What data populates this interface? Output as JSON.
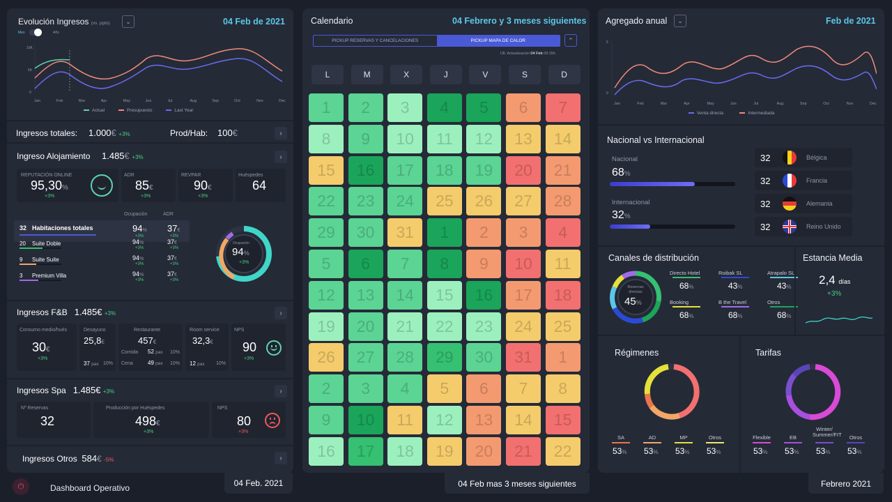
{
  "left": {
    "evo": {
      "title": "Evolución Ingresos",
      "subtitle": "(vs. ppto)",
      "date": "04 Feb de 2021",
      "toggle_left": "Mes",
      "toggle_right": "Año",
      "yticks": [
        "10K",
        "5K",
        "0"
      ],
      "months": [
        "Jan",
        "Feb",
        "Mar",
        "Apr",
        "May",
        "Jun",
        "Jul",
        "Aug",
        "Sep",
        "Oct",
        "Nov",
        "Dec"
      ],
      "legend": [
        "Actual",
        "Presupuesto",
        "Last Year"
      ]
    },
    "totals": {
      "label": "Ingresos totales:",
      "value": "1.000",
      "cur": "€",
      "pct": "+3%",
      "prod_label": "Prod/Hab:",
      "prod_value": "100",
      "prod_cur": "€"
    },
    "aloj": {
      "title": "Ingreso Alojamiento",
      "value": "1.485",
      "cur": "€",
      "pct": "+3%",
      "kpis": [
        {
          "label": "REPUTACIÓN ONLINE",
          "value": "95,30",
          "unit": "%",
          "pct": "+3%"
        },
        {
          "label": "ADR",
          "value": "85",
          "unit": "€",
          "pct": "+3%"
        },
        {
          "label": "REVPAR",
          "value": "90",
          "unit": "€",
          "pct": "+3%"
        },
        {
          "label": "Huéspedes",
          "value": "64"
        }
      ],
      "col_occ": "Ocupación",
      "col_adr": "ADR",
      "rooms": [
        {
          "n": "32",
          "name": "Habitaciones totales",
          "occ": "94",
          "adr": "37",
          "pct": "+3%"
        },
        {
          "n": "20",
          "name": "Suite Doble",
          "occ": "94",
          "adr": "37",
          "pct": "+3%"
        },
        {
          "n": "9",
          "name": "Suite Suite",
          "occ": "94",
          "adr": "37",
          "pct": "+3%"
        },
        {
          "n": "3",
          "name": "Premium Villa",
          "occ": "94",
          "adr": "37",
          "pct": "+3%"
        }
      ],
      "occ_label": "Ocupación",
      "occ_value": "94",
      "occ_unit": "%",
      "occ_pct": "+3%",
      "occ_fraction": 0.94
    },
    "fb": {
      "title": "Ingresos F&B",
      "value": "1.485€",
      "pct": "+3%",
      "consumo_label": "Consumo medio/hués",
      "consumo": "30",
      "consumo_pct": "+3%",
      "desayuno_label": "Desayuno",
      "desayuno": "25,8",
      "desayuno_pax": "37",
      "desayuno_pp": "10%",
      "rest_label": "Restaurante",
      "rest": "457",
      "comida_label": "Comida",
      "comida": "52",
      "comida_pp": "10%",
      "cena_label": "Cena",
      "cena": "49",
      "cena_pp": "10%",
      "room_label": "Room service",
      "room": "32,3",
      "room_pax": "12",
      "room_pp": "10%",
      "nps_label": "NPS",
      "nps": "90",
      "nps_pct": "+3%",
      "pax": "pax",
      "cur": "€"
    },
    "spa": {
      "title": "Ingresos Spa",
      "value": "1.485€",
      "pct": "+3%",
      "res_label": "Nº Reservas",
      "res": "32",
      "prod_label": "Producción por Huéspedes",
      "prod": "498",
      "prod_pct": "+3%",
      "nps_label": "NPS",
      "nps": "80",
      "nps_pct": "+3%"
    },
    "otros": {
      "title": "Ingresos Otros",
      "value": "584",
      "cur": "€",
      "pct": "-5%"
    }
  },
  "footer": {
    "app": "Dashboard Operativo",
    "left_date": "04 Feb. 2021",
    "mid": "04 Feb mas 3 meses siguientes",
    "right": "Febrero 2021"
  },
  "cal": {
    "title": "Calendario",
    "range": "04 Febrero y 3 meses siguientes",
    "tab1": "PICKUP RESERVAS Y CANCELACIONES",
    "tab2": "PICKUP MAPA DE CALOR",
    "update_label": "Últ. Actualización",
    "update_date": "04 Feb",
    "update_time": "09:15h",
    "days": [
      "L",
      "M",
      "X",
      "J",
      "V",
      "S",
      "D"
    ],
    "colors": {
      "a": "#1aa55a",
      "b": "#35c072",
      "c": "#5bd494",
      "d": "#9cf0bd",
      "e": "#f4cc6c",
      "f": "#f49a70",
      "g": "#f2706f"
    },
    "cells": [
      [
        "1",
        "c"
      ],
      [
        "2",
        "c"
      ],
      [
        "3",
        "d"
      ],
      [
        "4",
        "a"
      ],
      [
        "5",
        "a"
      ],
      [
        "6",
        "f"
      ],
      [
        "7",
        "g"
      ],
      [
        "8",
        "d"
      ],
      [
        "9",
        "c"
      ],
      [
        "10",
        "d"
      ],
      [
        "11",
        "d"
      ],
      [
        "12",
        "d"
      ],
      [
        "13",
        "e"
      ],
      [
        "14",
        "e"
      ],
      [
        "15",
        "e"
      ],
      [
        "16",
        "a"
      ],
      [
        "17",
        "c"
      ],
      [
        "18",
        "c"
      ],
      [
        "19",
        "c"
      ],
      [
        "20",
        "g"
      ],
      [
        "21",
        "f"
      ],
      [
        "22",
        "c"
      ],
      [
        "23",
        "c"
      ],
      [
        "24",
        "c"
      ],
      [
        "25",
        "e"
      ],
      [
        "26",
        "e"
      ],
      [
        "27",
        "e"
      ],
      [
        "28",
        "f"
      ],
      [
        "29",
        "c"
      ],
      [
        "30",
        "c"
      ],
      [
        "31",
        "e"
      ],
      [
        "1",
        "a"
      ],
      [
        "2",
        "f"
      ],
      [
        "3",
        "f"
      ],
      [
        "4",
        "g"
      ],
      [
        "5",
        "c"
      ],
      [
        "6",
        "a"
      ],
      [
        "7",
        "c"
      ],
      [
        "8",
        "a"
      ],
      [
        "9",
        "f"
      ],
      [
        "10",
        "g"
      ],
      [
        "11",
        "e"
      ],
      [
        "12",
        "c"
      ],
      [
        "13",
        "c"
      ],
      [
        "14",
        "c"
      ],
      [
        "15",
        "d"
      ],
      [
        "16",
        "a"
      ],
      [
        "17",
        "f"
      ],
      [
        "18",
        "g"
      ],
      [
        "19",
        "d"
      ],
      [
        "20",
        "c"
      ],
      [
        "21",
        "d"
      ],
      [
        "22",
        "d"
      ],
      [
        "23",
        "d"
      ],
      [
        "24",
        "e"
      ],
      [
        "25",
        "e"
      ],
      [
        "26",
        "e"
      ],
      [
        "27",
        "c"
      ],
      [
        "28",
        "c"
      ],
      [
        "29",
        "b"
      ],
      [
        "30",
        "c"
      ],
      [
        "31",
        "g"
      ],
      [
        "1",
        "f"
      ],
      [
        "2",
        "c"
      ],
      [
        "3",
        "c"
      ],
      [
        "4",
        "c"
      ],
      [
        "5",
        "e"
      ],
      [
        "6",
        "f"
      ],
      [
        "7",
        "e"
      ],
      [
        "8",
        "e"
      ],
      [
        "9",
        "c"
      ],
      [
        "10",
        "a"
      ],
      [
        "11",
        "e"
      ],
      [
        "12",
        "d"
      ],
      [
        "13",
        "f"
      ],
      [
        "14",
        "e"
      ],
      [
        "15",
        "g"
      ],
      [
        "16",
        "d"
      ],
      [
        "17",
        "b"
      ],
      [
        "18",
        "d"
      ],
      [
        "19",
        "e"
      ],
      [
        "20",
        "f"
      ],
      [
        "21",
        "g"
      ],
      [
        "22",
        "e"
      ]
    ]
  },
  "right": {
    "agg": {
      "title": "Agregado anual",
      "date": "Feb de 2021",
      "yticks": [
        "5",
        "0"
      ],
      "months": [
        "Jan",
        "Feb",
        "Mar",
        "Apr",
        "May",
        "Jun",
        "Jul",
        "Aug",
        "Sep",
        "Oct",
        "Nov",
        "Dec"
      ],
      "legend": [
        "Venta directa",
        "Intermediada"
      ]
    },
    "nat": {
      "title": "Nacional vs Internacional",
      "nac_label": "Nacional",
      "nac": "68",
      "intl_label": "Internacional",
      "intl": "32",
      "unit": "%",
      "nac_fraction": 0.68,
      "intl_fraction": 0.32,
      "countries": [
        {
          "n": "32",
          "name": "Bélgica"
        },
        {
          "n": "32",
          "name": "Francia"
        },
        {
          "n": "32",
          "name": "Alemania"
        },
        {
          "n": "32",
          "name": "Reino Unido"
        }
      ]
    },
    "canales": {
      "title": "Canales de distribución",
      "center_label": "Reservas directas",
      "center": "45",
      "unit": "%",
      "items": [
        {
          "name": "Directo Hotel",
          "v": "68"
        },
        {
          "name": "Roibak SL",
          "v": "43"
        },
        {
          "name": "Atrapalo SL",
          "v": "43"
        },
        {
          "name": "Booking",
          "v": "68"
        },
        {
          "name": "B the Travel",
          "v": "68"
        },
        {
          "name": "Otros",
          "v": "68"
        }
      ]
    },
    "estancia": {
      "title": "Estancia Media",
      "value": "2,4",
      "unit": "días",
      "pct": "+3%"
    },
    "reg": {
      "title": "Régimenes",
      "items": [
        {
          "name": "SA",
          "v": "53",
          "color": "#e8764a"
        },
        {
          "name": "AD",
          "v": "53",
          "color": "#f2a766"
        },
        {
          "name": "MP",
          "v": "53",
          "color": "#e5e13a"
        },
        {
          "name": "Otros",
          "v": "53",
          "color": "#f2e566"
        }
      ]
    },
    "tar": {
      "title": "Tarifas",
      "items": [
        {
          "name": "Flexible",
          "v": "53",
          "color": "#d94ad6"
        },
        {
          "name": "EB",
          "v": "53",
          "color": "#a84fe0"
        },
        {
          "name": "Winter/\nSummer/FIT",
          "v": "53",
          "color": "#7a4fcf"
        },
        {
          "name": "Otros",
          "v": "53",
          "color": "#5a45b8"
        }
      ]
    },
    "unit": "%"
  }
}
